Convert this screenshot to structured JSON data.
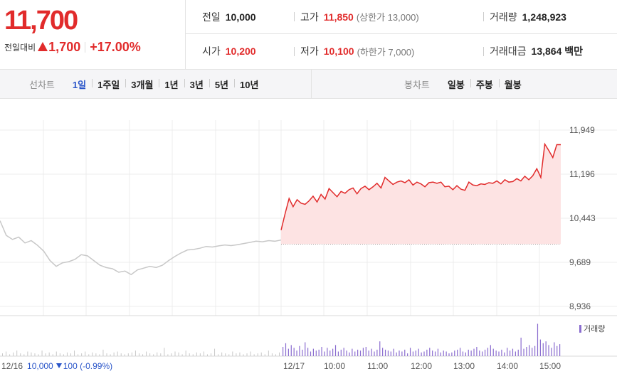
{
  "price": {
    "current": "11,700",
    "change_label": "전일대비",
    "change_value": "1,700",
    "change_pct": "+17.00%",
    "color_up": "#e12b2b",
    "color_down": "#2a55c9"
  },
  "summary": {
    "prev_close_label": "전일",
    "prev_close": "10,000",
    "high_label": "고가",
    "high": "11,850",
    "upper_limit": "(상한가 13,000)",
    "volume_label": "거래량",
    "volume": "1,248,923",
    "open_label": "시가",
    "open": "10,200",
    "low_label": "저가",
    "low": "10,100",
    "lower_limit": "(하한가 7,000)",
    "trade_value_label": "거래대금",
    "trade_value": "13,864 백만"
  },
  "toolbar": {
    "line_chart_label": "선차트",
    "periods": [
      "1일",
      "1주일",
      "3개월",
      "1년",
      "3년",
      "5년",
      "10년"
    ],
    "active_period": "1일",
    "candle_chart_label": "봉차트",
    "candle_periods": [
      "일봉",
      "주봉",
      "월봉"
    ]
  },
  "chart_data": {
    "type": "line",
    "y_ticks": [
      "11,949",
      "11,196",
      "10,443",
      "9,689",
      "8,936"
    ],
    "y_tick_values": [
      11949,
      11196,
      10443,
      9689,
      8936
    ],
    "ylim": [
      8936,
      11949
    ],
    "baseline": 10000,
    "x_labels": [
      "12/16",
      "12/17",
      "10:00",
      "11:00",
      "12:00",
      "13:00",
      "14:00",
      "15:00"
    ],
    "prev_day_series": {
      "name": "12/16",
      "values": [
        10400,
        10150,
        10080,
        10120,
        10020,
        10060,
        9980,
        9880,
        9720,
        9620,
        9680,
        9700,
        9740,
        9820,
        9800,
        9720,
        9640,
        9600,
        9580,
        9520,
        9540,
        9480,
        9560,
        9590,
        9620,
        9600,
        9640,
        9720,
        9790,
        9850,
        9900,
        9910,
        9930,
        9960,
        9950,
        9970,
        9985,
        9975,
        9990,
        10010,
        10030,
        10050,
        10040,
        10060,
        10050,
        10070
      ]
    },
    "today_series": {
      "name": "12/17",
      "values": [
        10240,
        10520,
        10780,
        10640,
        10760,
        10700,
        10680,
        10740,
        10820,
        10720,
        10850,
        10770,
        10950,
        10880,
        10810,
        10900,
        10870,
        10930,
        10960,
        10860,
        10950,
        10990,
        10930,
        10980,
        11040,
        10960,
        11140,
        11080,
        11020,
        11060,
        11080,
        11050,
        11100,
        11010,
        11060,
        11030,
        10980,
        11050,
        11060,
        11040,
        11060,
        10980,
        10990,
        10930,
        11000,
        10940,
        10920,
        11060,
        11010,
        11000,
        11030,
        11020,
        11050,
        11040,
        11080,
        11030,
        11100,
        11060,
        11070,
        11120,
        11080,
        11160,
        11100,
        11170,
        11290,
        11140,
        11710,
        11600,
        11480,
        11700,
        11700
      ]
    },
    "volume": {
      "label": "거래량",
      "color": "#8a6ccf",
      "prev_day": [
        3,
        5,
        2,
        4,
        6,
        3,
        2,
        5,
        4,
        3,
        2,
        6,
        3,
        4,
        2,
        5,
        3,
        2,
        4,
        3,
        6,
        2,
        3,
        5,
        2,
        4,
        3,
        2,
        7,
        3,
        2,
        4,
        5,
        3,
        2,
        3,
        4,
        6,
        3,
        2,
        5,
        3,
        2,
        4,
        3,
        9,
        2,
        3,
        5,
        4,
        2,
        6,
        3,
        2,
        4,
        3,
        5,
        2,
        3,
        8,
        2,
        4,
        3,
        2,
        5,
        3,
        4,
        2,
        3,
        5,
        2,
        3,
        4,
        2,
        6,
        3,
        2,
        4
      ],
      "today": [
        10,
        14,
        8,
        12,
        9,
        6,
        11,
        7,
        15,
        9,
        5,
        8,
        6,
        7,
        10,
        5,
        9,
        6,
        8,
        12,
        5,
        7,
        9,
        6,
        4,
        8,
        5,
        7,
        6,
        9,
        10,
        6,
        8,
        5,
        7,
        16,
        9,
        7,
        6,
        5,
        8,
        4,
        6,
        5,
        7,
        3,
        9,
        5,
        6,
        8,
        4,
        5,
        7,
        9,
        6,
        5,
        8,
        4,
        6,
        5,
        3,
        4,
        6,
        7,
        9,
        5,
        4,
        7,
        6,
        8,
        10,
        6,
        5,
        7,
        9,
        12,
        8,
        6,
        5,
        7,
        4,
        9,
        6,
        8,
        5,
        7,
        20,
        8,
        10,
        12,
        9,
        11,
        35,
        18,
        14,
        16,
        12,
        9,
        15,
        11,
        13
      ]
    },
    "footer_prev": {
      "date": "12/16",
      "price": "10,000",
      "change": "100",
      "change_pct": "(-0.99%)"
    }
  }
}
